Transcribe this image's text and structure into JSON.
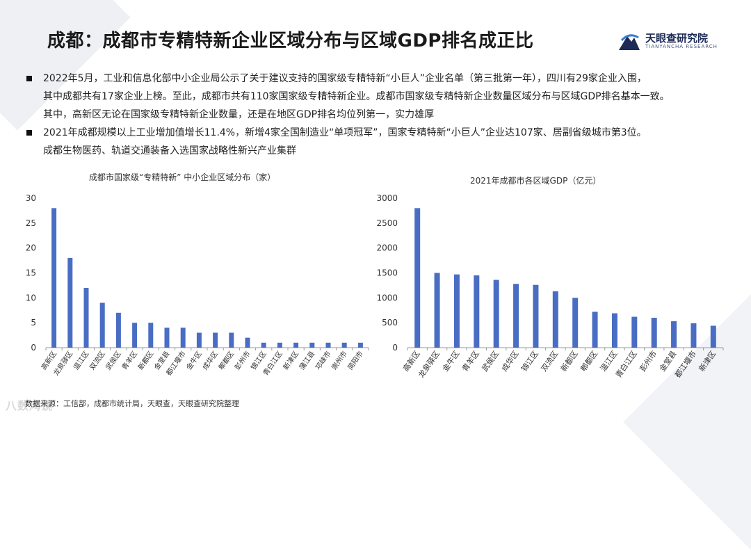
{
  "header": {
    "title": "成都：成都市专精特新企业区域分布与区域GDP排名成正比",
    "logo_name": "天眼查研究院",
    "logo_sub": "TIANYANCHA RESEARCH"
  },
  "bullets": [
    {
      "lines": [
        "2022年5月，工业和信息化部中小企业局公示了关于建议支持的国家级专精特新“小巨人”企业名单（第三批第一年），四川有29家企业入围，",
        "其中成都共有17家企业上榜。至此，成都市共有110家国家级专精特新企业。成都市国家级专精特新企业数量区域分布与区域GDP排名基本一致。",
        "其中，高新区无论在国家级专精特新企业数量，还是在地区GDP排名均位列第一，实力雄厚"
      ]
    },
    {
      "lines": [
        "2021年成都规模以上工业增加值增长11.4%，新增4家全国制造业“单项冠军”，国家专精特新“小巨人”企业达107家、居副省级城市第3位。",
        "成都生物医药、轨道交通装备入选国家战略性新兴产业集群"
      ]
    }
  ],
  "chart_data": [
    {
      "type": "bar",
      "title": "成都市国家级“专精特新” 中小企业区域分布（家）",
      "categories": [
        "高新区",
        "龙泉驿区",
        "温江区",
        "双流区",
        "武侯区",
        "青羊区",
        "新都区",
        "金堂县",
        "都江堰市",
        "金牛区",
        "成华区",
        "郫都区",
        "彭州市",
        "锦江区",
        "青白江区",
        "新津区",
        "蒲江县",
        "邛崃市",
        "崇州市",
        "简阳市"
      ],
      "values": [
        28,
        18,
        12,
        9,
        7,
        5,
        5,
        4,
        4,
        3,
        3,
        3,
        2,
        1,
        1,
        1,
        1,
        1,
        1,
        1
      ],
      "ylim": [
        0,
        30
      ],
      "yticks": [
        0,
        5,
        10,
        15,
        20,
        25,
        30
      ],
      "color": "#4a6dc4"
    },
    {
      "type": "bar",
      "title": "2021年成都市各区域GDP（亿元）",
      "categories": [
        "高新区",
        "龙泉驿区",
        "金牛区",
        "青羊区",
        "武侯区",
        "成华区",
        "锦江区",
        "双流区",
        "新都区",
        "郫都区",
        "温江区",
        "青白江区",
        "彭州市",
        "金堂县",
        "都江堰市",
        "新津区"
      ],
      "values": [
        2800,
        1500,
        1470,
        1450,
        1360,
        1280,
        1260,
        1130,
        1000,
        720,
        690,
        620,
        600,
        530,
        490,
        440
      ],
      "ylim": [
        0,
        3000
      ],
      "yticks": [
        0,
        500,
        1000,
        1500,
        2000,
        2500,
        3000
      ],
      "color": "#4a6dc4"
    }
  ],
  "footer": {
    "source": "数据来源：工信部，成都市统计局，天眼查，天眼查研究院整理",
    "watermark": "八数鸿镜"
  }
}
